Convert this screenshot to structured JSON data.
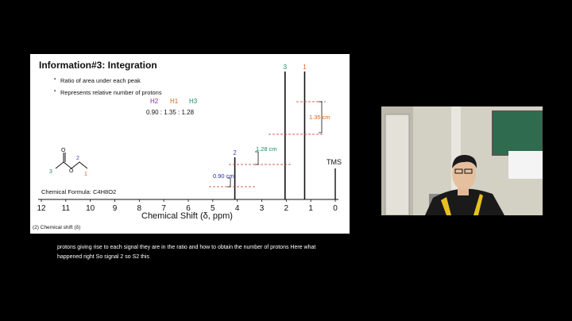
{
  "slide": {
    "title": "Information#3: Integration",
    "bullets": [
      "Ratio of area under each peak",
      "Represents relative number of protons"
    ],
    "ratio_headers": [
      "H2",
      "H1",
      "H3"
    ],
    "ratio_header_colors": [
      "#7a2ea0",
      "#e0621a",
      "#1a8a6a"
    ],
    "ratio_values": "0.90 : 1.35 : 1.28",
    "formula": "Chemical Formula: C4H8O2",
    "source": "(2) Chemical shift (δ)",
    "atom_labels": [
      "3",
      "2",
      "1"
    ]
  },
  "chart_data": {
    "type": "line",
    "xlabel": "Chemical Shift (δ, ppm)",
    "x_ticks": [
      "12",
      "11",
      "10",
      "9",
      "8",
      "7",
      "6",
      "5",
      "4",
      "3",
      "2",
      "1",
      "0"
    ],
    "xlim": [
      12,
      0
    ],
    "peaks": [
      {
        "label": "2",
        "ppm": 4.1,
        "color": "#4a4aa0"
      },
      {
        "label": "3",
        "ppm": 2.05,
        "color": "#1a8a6a"
      },
      {
        "label": "1",
        "ppm": 1.25,
        "color": "#e0621a"
      }
    ],
    "tms_label": "TMS",
    "integration_heights": [
      {
        "label": "0.90 cm",
        "color": "#2a2ac0"
      },
      {
        "label": "1.28 cm",
        "color": "#1a8a6a"
      },
      {
        "label": "1.35 cm",
        "color": "#e0621a"
      }
    ]
  },
  "caption": "protons giving rise to each signal they are in the ratio and how to obtain the number of protons Here what happened right So signal 2 so S2 this"
}
